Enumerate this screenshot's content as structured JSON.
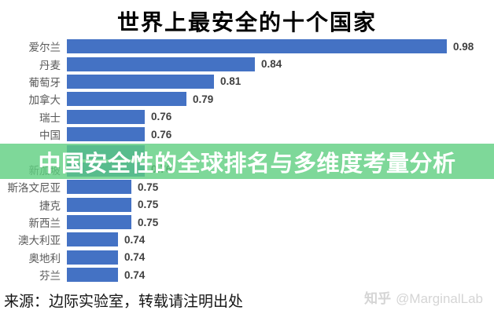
{
  "title": "世界上最安全的十个国家",
  "overlay_banner": {
    "text": "中国安全性的全球排名与多维度考量分析",
    "bg_color": "#5ECE80",
    "text_color": "#ffffff"
  },
  "chart_data": {
    "type": "bar",
    "orientation": "horizontal",
    "title": "世界上最安全的十个国家",
    "categories": [
      "爱尔兰",
      "丹麦",
      "葡萄牙",
      "加拿大",
      "瑞士",
      "中国",
      "",
      "新加坡",
      "斯洛文尼亚",
      "捷克",
      "新西兰",
      "澳大利亚",
      "奥地利",
      "芬兰"
    ],
    "values": [
      0.98,
      0.84,
      0.81,
      0.79,
      0.76,
      0.76,
      0.76,
      0.76,
      0.75,
      0.75,
      0.75,
      0.74,
      0.74,
      0.74
    ],
    "value_labels": [
      "0.98",
      "0.84",
      "0.81",
      "0.79",
      "0.76",
      "0.76",
      "",
      "0.76",
      "0.75",
      "0.75",
      "0.75",
      "0.74",
      "0.74",
      "0.74"
    ],
    "obscured_row_index": 6,
    "bar_color": "#4472C4",
    "xlim": [
      0.703,
      0.98
    ],
    "grid": false,
    "legend": false,
    "x_axis_hidden": true
  },
  "footer": {
    "source": "来源：边际实验室，转载请注明出处",
    "watermark": {
      "brand": "知乎",
      "handle": "@MarginalLab"
    }
  }
}
